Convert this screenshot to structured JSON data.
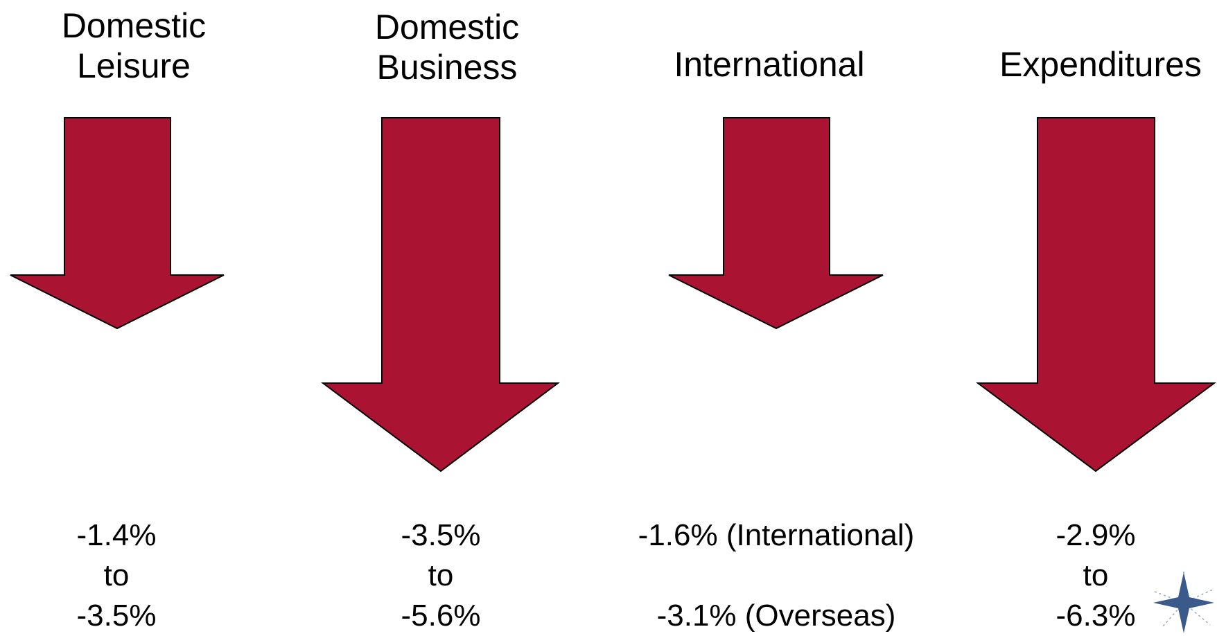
{
  "colors": {
    "arrow_fill": "#AA1432",
    "arrow_stroke": "#000000",
    "logo_star": "#3A5A8C"
  },
  "columns": [
    {
      "title": "Domestic\nLeisure",
      "value": "-1.4%\nto\n-3.5%",
      "arrow_size": "short"
    },
    {
      "title": "Domestic\nBusiness",
      "value": "-3.5%\nto\n-5.6%",
      "arrow_size": "long"
    },
    {
      "title": "International",
      "value": "-1.6% (International)\n\n-3.1% (Overseas)",
      "arrow_size": "short"
    },
    {
      "title": "Expenditures",
      "value": "-2.9%\nto\n-6.3%",
      "arrow_size": "long"
    }
  ],
  "logo": {
    "icon": "star-logo-icon"
  }
}
